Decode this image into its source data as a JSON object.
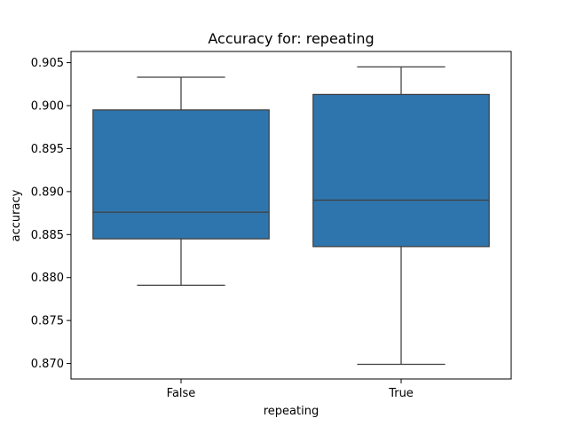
{
  "chart_data": {
    "type": "box",
    "title": "Accuracy for: repeating",
    "xlabel": "repeating",
    "ylabel": "accuracy",
    "categories": [
      "False",
      "True"
    ],
    "ylim": [
      0.8682,
      0.9063
    ],
    "yticks": [
      "0.870",
      "0.875",
      "0.880",
      "0.885",
      "0.890",
      "0.895",
      "0.900",
      "0.905"
    ],
    "grid": false,
    "box_color": "#2f75ad",
    "line_color": "#3f3f3f",
    "boxes": [
      {
        "category": "False",
        "whisker_low": 0.8791,
        "q1": 0.8845,
        "median": 0.8876,
        "q3": 0.8995,
        "whisker_high": 0.9033
      },
      {
        "category": "True",
        "whisker_low": 0.8699,
        "q1": 0.8836,
        "median": 0.889,
        "q3": 0.9013,
        "whisker_high": 0.9045
      }
    ]
  }
}
